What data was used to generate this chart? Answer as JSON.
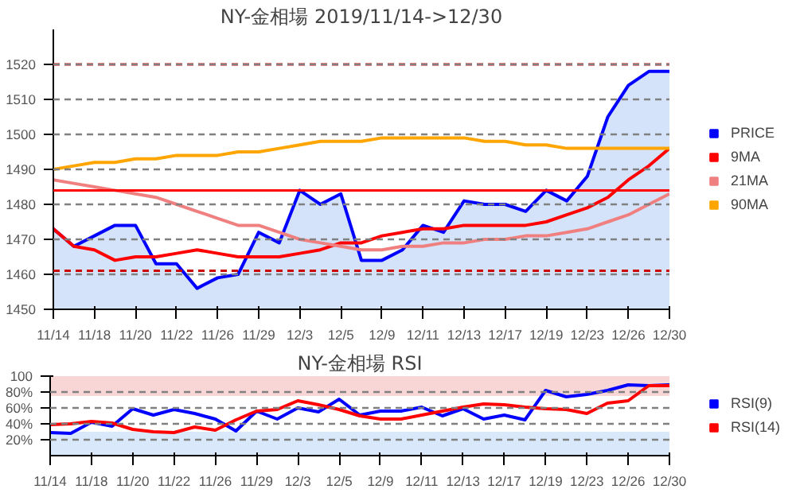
{
  "chart_data": [
    {
      "type": "line",
      "title": "NY-金相場 2019/11/14->12/30",
      "categories": [
        "11/14",
        null,
        "11/18",
        null,
        "11/20",
        null,
        "11/22",
        null,
        "11/26",
        null,
        "11/29",
        null,
        "12/3",
        null,
        "12/5",
        null,
        "12/9",
        null,
        "12/11",
        null,
        "12/13",
        null,
        "12/17",
        null,
        "12/19",
        null,
        "12/23",
        null,
        "12/26",
        null,
        "12/30"
      ],
      "series": [
        {
          "name": "PRICE",
          "type": "area",
          "color": "#0000ff",
          "values": [
            1473,
            1468,
            1471,
            1474,
            1474,
            1463,
            1463,
            1456,
            1459,
            1460,
            1472,
            1469,
            1484,
            1480,
            1483,
            1464,
            1464,
            1467,
            1474,
            1472,
            1481,
            1480,
            1480,
            1478,
            1484,
            1481,
            1488,
            1505,
            1514,
            1518,
            1518
          ]
        },
        {
          "name": "9MA",
          "color": "#ff0000",
          "values": [
            1473,
            1468,
            1467,
            1464,
            1465,
            1465,
            1466,
            1467,
            1466,
            1465,
            1465,
            1465,
            1466,
            1467,
            1469,
            1469,
            1471,
            1472,
            1473,
            1473,
            1474,
            1474,
            1474,
            1474,
            1475,
            1477,
            1479,
            1482,
            1487,
            1491,
            1496
          ]
        },
        {
          "name": "21MA",
          "color": "#f08080",
          "values": [
            1487,
            1486,
            1485,
            1484,
            1483,
            1482,
            1480,
            1478,
            1476,
            1474,
            1474,
            1472,
            1470,
            1469,
            1468,
            1467,
            1467,
            1468,
            1468,
            1469,
            1469,
            1470,
            1470,
            1471,
            1471,
            1472,
            1473,
            1475,
            1477,
            1480,
            1483
          ]
        },
        {
          "name": "90MA",
          "color": "#ffa500",
          "values": [
            1490,
            1491,
            1492,
            1492,
            1493,
            1493,
            1494,
            1494,
            1494,
            1495,
            1495,
            1496,
            1497,
            1498,
            1498,
            1498,
            1499,
            1499,
            1499,
            1499,
            1499,
            1498,
            1498,
            1497,
            1497,
            1496,
            1496,
            1496,
            1496,
            1496,
            1496
          ]
        }
      ],
      "ylim": [
        1450,
        1530
      ],
      "yticks": [
        1450,
        1460,
        1470,
        1480,
        1490,
        1500,
        1510,
        1520
      ],
      "grid": "y",
      "legend": "right",
      "ref_lines": [
        {
          "axis": "y",
          "value": 1484,
          "color": "#ff0000",
          "line_style": "solid"
        },
        {
          "axis": "y",
          "value": 1520,
          "color": "#ff0000",
          "line_style": "dashed"
        },
        {
          "axis": "y",
          "value": 1461,
          "color": "#cc0000",
          "line_style": "dashed"
        }
      ]
    },
    {
      "type": "line",
      "title": "NY-金相場 RSI",
      "categories": [
        "11/14",
        null,
        "11/18",
        null,
        "11/20",
        null,
        "11/22",
        null,
        "11/26",
        null,
        "11/29",
        null,
        "12/3",
        null,
        "12/5",
        null,
        "12/9",
        null,
        "12/11",
        null,
        "12/13",
        null,
        "12/17",
        null,
        "12/19",
        null,
        "12/23",
        null,
        "12/26",
        null,
        "12/30"
      ],
      "series": [
        {
          "name": "RSI(9)",
          "color": "#0000ff",
          "values": [
            29,
            28,
            42,
            37,
            59,
            51,
            58,
            53,
            46,
            31,
            56,
            46,
            60,
            55,
            71,
            51,
            56,
            56,
            61,
            50,
            59,
            46,
            51,
            45,
            82,
            74,
            77,
            82,
            89,
            88,
            89
          ]
        },
        {
          "name": "RSI(14)",
          "color": "#ff0000",
          "values": [
            39,
            40,
            43,
            41,
            33,
            30,
            29,
            36,
            32,
            45,
            56,
            58,
            69,
            64,
            58,
            50,
            46,
            46,
            51,
            56,
            61,
            65,
            64,
            61,
            59,
            58,
            53,
            66,
            69,
            88,
            88
          ]
        }
      ],
      "ylim": [
        0,
        100
      ],
      "yticks": [
        {
          "value": 20,
          "label": "20%"
        },
        {
          "value": 40,
          "label": "40%"
        },
        {
          "value": 60,
          "label": "60%"
        },
        {
          "value": 80,
          "label": "80%"
        },
        {
          "value": 100,
          "label": "100"
        }
      ],
      "grid": "y",
      "legend": "right",
      "bands": [
        {
          "axis": "y",
          "from": 75,
          "to": 100,
          "color": "#f8cccc"
        },
        {
          "axis": "y",
          "from": 0,
          "to": 30,
          "color": "#cfe2fa"
        }
      ]
    }
  ]
}
